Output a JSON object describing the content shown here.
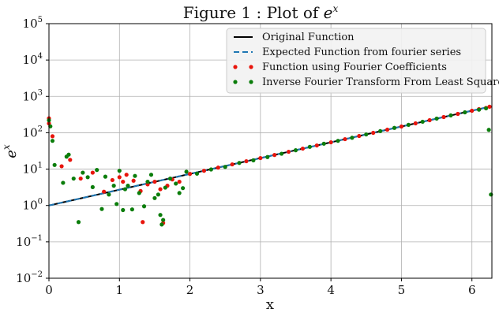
{
  "chart_data": {
    "type": "scatter",
    "title": "Figure 1 : Plot of e^x",
    "title_prefix": "Figure 1 : Plot of ",
    "title_base": "e",
    "title_sup": "x",
    "xlabel": "x",
    "ylabel_base": "e",
    "ylabel_sup": "x",
    "xlim": [
      0,
      6.2832
    ],
    "ylim_log10": [
      -2,
      5
    ],
    "yscale": "log",
    "grid": true,
    "legend_position": "top-right",
    "x_ticks": [
      0,
      1,
      2,
      3,
      4,
      5,
      6
    ],
    "x_tick_labels": [
      "0",
      "1",
      "2",
      "3",
      "4",
      "5",
      "6"
    ],
    "y_ticks_log10": [
      -2,
      -1,
      0,
      1,
      2,
      3,
      4,
      5
    ],
    "y_tick_base": "10",
    "y_tick_exponents": [
      "−2",
      "−1",
      "0",
      "1",
      "2",
      "3",
      "4",
      "5"
    ],
    "series": [
      {
        "name": "Original Function",
        "style": "line",
        "color": "#000000",
        "function": "exp",
        "x_range": [
          0,
          6.2832
        ]
      },
      {
        "name": "Expected Function from fourier series",
        "style": "dashed-line",
        "color": "#1f77b4",
        "function": "exp",
        "x_range": [
          0,
          6.2832
        ]
      },
      {
        "name": "Function using Fourier Coefficients",
        "style": "markers",
        "color": "#e8150c",
        "x": [
          0.0,
          0.0,
          0.05,
          0.18,
          0.3,
          0.45,
          0.62,
          0.78,
          0.9,
          1.0,
          1.05,
          1.1,
          1.2,
          1.3,
          1.33,
          1.4,
          1.5,
          1.58,
          1.62,
          1.68,
          1.75,
          1.85,
          2.0,
          2.2,
          2.4,
          2.6,
          2.8,
          3.0,
          3.2,
          3.4,
          3.6,
          3.8,
          4.0,
          4.2,
          4.4,
          4.6,
          4.8,
          5.0,
          5.2,
          5.4,
          5.6,
          5.8,
          6.0,
          6.1,
          6.2,
          6.25
        ],
        "y": [
          250,
          180,
          80,
          12,
          18,
          5.5,
          8,
          2.4,
          5,
          6,
          4.5,
          7,
          4.8,
          2.5,
          0.35,
          3.8,
          4.5,
          2.8,
          0.33,
          3.5,
          5.2,
          4.5,
          7.4,
          9.0,
          11.0,
          13.5,
          16.5,
          20.1,
          24.5,
          30,
          36.6,
          44.7,
          54.6,
          66.7,
          81.5,
          99.5,
          121.5,
          148.4,
          181.3,
          221.4,
          270.4,
          330.3,
          403.4,
          445.9,
          480,
          520
        ]
      },
      {
        "name": "Inverse Fourier Transform From Least Squares",
        "style": "markers",
        "color": "#0b7d0b",
        "x": [
          0.0,
          0.02,
          0.05,
          0.08,
          0.2,
          0.25,
          0.28,
          0.35,
          0.42,
          0.48,
          0.55,
          0.62,
          0.68,
          0.75,
          0.8,
          0.85,
          0.92,
          0.96,
          1.0,
          1.05,
          1.08,
          1.12,
          1.18,
          1.22,
          1.28,
          1.35,
          1.4,
          1.45,
          1.5,
          1.55,
          1.58,
          1.6,
          1.62,
          1.65,
          1.72,
          1.8,
          1.85,
          1.9,
          1.95,
          2.1,
          2.3,
          2.5,
          2.7,
          2.9,
          3.1,
          3.3,
          3.5,
          3.7,
          3.9,
          4.1,
          4.3,
          4.5,
          4.7,
          4.9,
          5.1,
          5.3,
          5.5,
          5.7,
          5.9,
          6.1,
          6.2,
          6.24,
          6.27
        ],
        "y": [
          220,
          150,
          60,
          13,
          4.2,
          22,
          25,
          5.5,
          0.35,
          8,
          6,
          3.2,
          9.5,
          0.8,
          6.2,
          2.0,
          3.5,
          1.1,
          9.0,
          0.75,
          2.8,
          3.5,
          0.78,
          6.5,
          2.2,
          0.95,
          4.5,
          7.0,
          1.6,
          2.0,
          0.55,
          0.3,
          0.4,
          3.1,
          5.5,
          4.0,
          2.2,
          3.0,
          8.5,
          7.5,
          9.8,
          11.5,
          14.8,
          17.5,
          21.5,
          26.5,
          33,
          41,
          50,
          60,
          73,
          90,
          111,
          136,
          165,
          201,
          245,
          300,
          365,
          430,
          470,
          120,
          2
        ]
      }
    ]
  }
}
